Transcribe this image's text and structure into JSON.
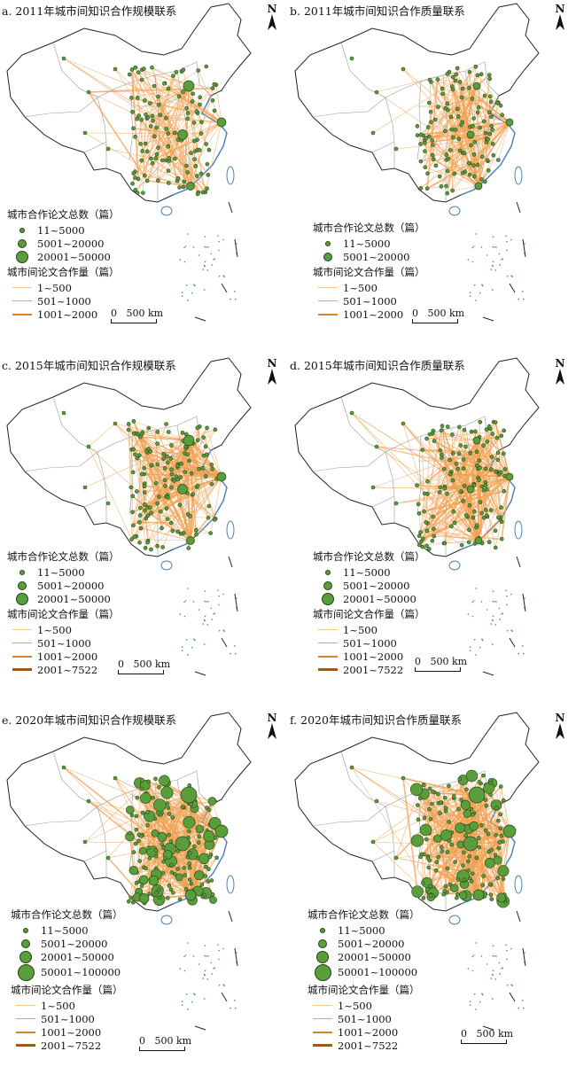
{
  "colors": {
    "node_fill": "#5a9e3c",
    "node_stroke": "#24431a",
    "link": "#f0a050",
    "border": "#555555",
    "coast": "#4a7fc0"
  },
  "north_label": "N",
  "scale": {
    "zero": "0",
    "dist": "500 km"
  },
  "panels": [
    {
      "title": "a. 2011年城市间知识合作规模联系",
      "node_legend_title": "城市合作论文总数（篇）",
      "node_classes": [
        "11~5000",
        "5001~20000",
        "20001~50000"
      ],
      "link_legend_title": "城市间论文合作量（篇）",
      "link_classes": [
        "1~500",
        "501~1000",
        "1001~2000"
      ]
    },
    {
      "title": "b. 2011年城市间知识合作质量联系",
      "node_legend_title": "城市合作论文总数（篇）",
      "node_classes": [
        "11~5000",
        "5001~20000"
      ],
      "link_legend_title": "城市间论文合作量（篇）",
      "link_classes": [
        "1~500",
        "501~1000",
        "1001~2000"
      ]
    },
    {
      "title": "c. 2015年城市间知识合作规模联系",
      "node_legend_title": "城市合作论文总数（篇）",
      "node_classes": [
        "11~5000",
        "5001~20000",
        "20001~50000"
      ],
      "link_legend_title": "城市间论文合作量（篇）",
      "link_classes": [
        "1~500",
        "501~1000",
        "1001~2000",
        "2001~7522"
      ]
    },
    {
      "title": "d. 2015年城市间知识合作质量联系",
      "node_legend_title": "城市合作论文总数（篇）",
      "node_classes": [
        "11~5000",
        "5001~20000",
        "20001~50000"
      ],
      "link_legend_title": "城市间论文合作量（篇）",
      "link_classes": [
        "1~500",
        "501~1000",
        "1001~2000",
        "2001~7522"
      ]
    },
    {
      "title": "e. 2020年城市间知识合作规模联系",
      "node_legend_title": "城市合作论文总数（篇）",
      "node_classes": [
        "11~5000",
        "5001~20000",
        "20001~50000",
        "50001~100000"
      ],
      "link_legend_title": "城市间论文合作量（篇）",
      "link_classes": [
        "1~500",
        "501~1000",
        "1001~2000",
        "2001~7522"
      ]
    },
    {
      "title": "f. 2020年城市间知识合作质量联系",
      "node_legend_title": "城市合作论文总数（篇）",
      "node_classes": [
        "11~5000",
        "5001~20000",
        "20001~50000",
        "50001~100000"
      ],
      "link_legend_title": "城市间论文合作量（篇）",
      "link_classes": [
        "1~500",
        "501~1000",
        "1001~2000",
        "2001~7522"
      ]
    }
  ]
}
